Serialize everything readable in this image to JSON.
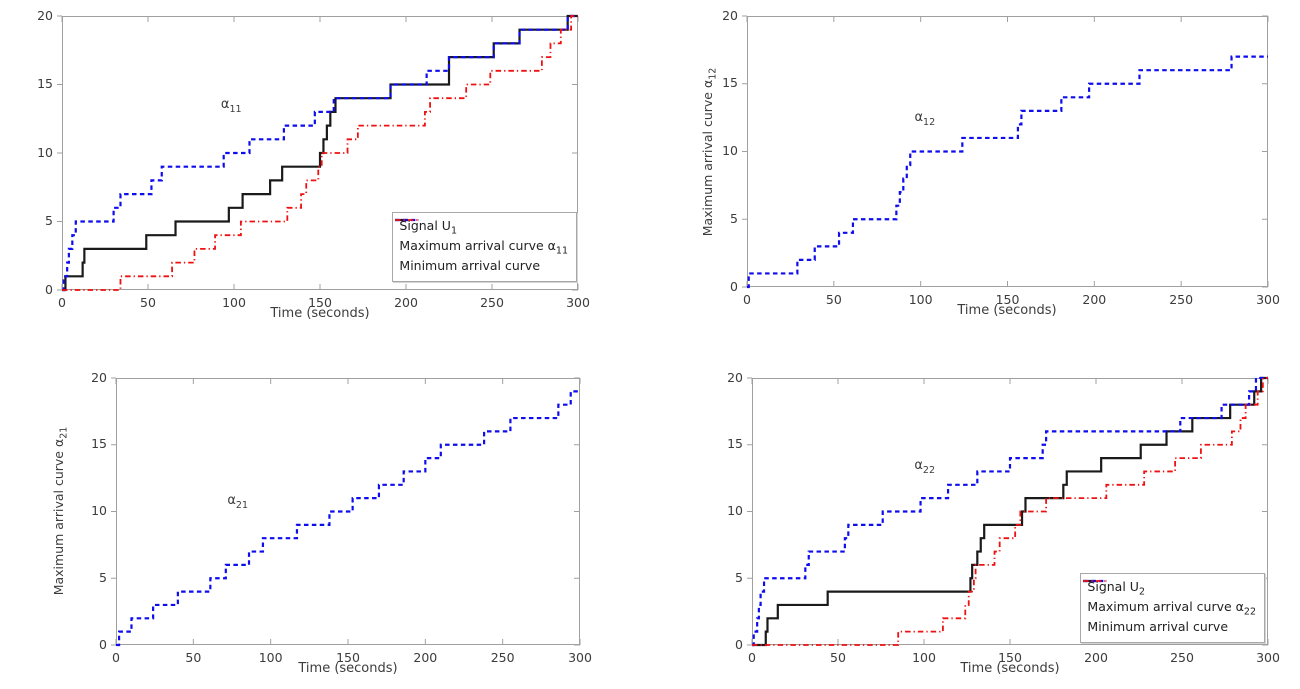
{
  "figure": {
    "background": "#ffffff"
  },
  "colors": {
    "signal": "#1a1a1a",
    "max_curve": "#0d0dee",
    "min_curve": "#ee1111",
    "axis": "#a0a0a0",
    "text": "#3c3c3c"
  },
  "chart_data": [
    {
      "id": "signal-u1-plot",
      "type": "line",
      "step": true,
      "xlabel": "Time (seconds)",
      "ylabel": {
        "text": "",
        "sub": ""
      },
      "xlim": [
        0,
        300
      ],
      "ylim": [
        0,
        20
      ],
      "xticks": [
        0,
        50,
        100,
        150,
        200,
        250,
        300
      ],
      "yticks": [
        0,
        5,
        10,
        15,
        20
      ],
      "grid": false,
      "annotation": {
        "text": "α",
        "sub": "11",
        "x": 96,
        "y": 13.4
      },
      "legend": {
        "position": "lower-right",
        "entries": [
          {
            "text": "Signal U",
            "sub": "1",
            "series": 0
          },
          {
            "text": "Maximum arrival curve α",
            "sub": "11",
            "series": 1
          },
          {
            "text": "Minimum arrival curve",
            "sub": "",
            "series": 2
          }
        ]
      },
      "series": [
        {
          "name": "Signal U1",
          "role": "signal",
          "color": "#1a1a1a",
          "style": "solid",
          "width": 2.2,
          "points": [
            [
              0,
              0
            ],
            [
              2,
              1
            ],
            [
              12,
              2
            ],
            [
              13,
              3
            ],
            [
              49,
              4
            ],
            [
              66,
              5
            ],
            [
              97,
              6
            ],
            [
              105,
              7
            ],
            [
              121,
              8
            ],
            [
              128,
              9
            ],
            [
              150,
              10
            ],
            [
              152,
              11
            ],
            [
              154,
              12
            ],
            [
              156,
              13
            ],
            [
              159,
              14
            ],
            [
              191,
              15
            ],
            [
              225,
              17
            ],
            [
              251,
              18
            ],
            [
              266,
              19
            ],
            [
              294,
              20
            ]
          ]
        },
        {
          "name": "Maximum arrival curve α11",
          "role": "max",
          "color": "#0d0dee",
          "style": "dashed",
          "width": 2.2,
          "points": [
            [
              0,
              0
            ],
            [
              1,
              1
            ],
            [
              3,
              2
            ],
            [
              4,
              3
            ],
            [
              6,
              4
            ],
            [
              8,
              5
            ],
            [
              30,
              6
            ],
            [
              34,
              7
            ],
            [
              52,
              8
            ],
            [
              58,
              9
            ],
            [
              94,
              10
            ],
            [
              109,
              11
            ],
            [
              129,
              12
            ],
            [
              147,
              13
            ],
            [
              158,
              14
            ],
            [
              191,
              15
            ],
            [
              212,
              16
            ],
            [
              225,
              17
            ],
            [
              251,
              18
            ],
            [
              266,
              19
            ],
            [
              294,
              20
            ]
          ]
        },
        {
          "name": "Minimum arrival curve",
          "role": "min",
          "color": "#ee1111",
          "style": "dashdot",
          "width": 1.8,
          "points": [
            [
              0,
              0
            ],
            [
              34,
              1
            ],
            [
              64,
              2
            ],
            [
              77,
              3
            ],
            [
              89,
              4
            ],
            [
              104,
              5
            ],
            [
              131,
              6
            ],
            [
              139,
              7
            ],
            [
              142,
              8
            ],
            [
              149,
              9
            ],
            [
              151,
              10
            ],
            [
              166,
              11
            ],
            [
              172,
              12
            ],
            [
              211,
              13
            ],
            [
              214,
              14
            ],
            [
              235,
              15
            ],
            [
              249,
              16
            ],
            [
              279,
              17
            ],
            [
              284,
              18
            ],
            [
              290,
              19
            ],
            [
              296,
              20
            ]
          ]
        }
      ]
    },
    {
      "id": "alpha12-plot",
      "type": "line",
      "step": true,
      "xlabel": "Time (seconds)",
      "ylabel": {
        "text": "Maximum arrival curve α",
        "sub": "12"
      },
      "xlim": [
        0,
        300
      ],
      "ylim": [
        0,
        20
      ],
      "xticks": [
        0,
        50,
        100,
        150,
        200,
        250,
        300
      ],
      "yticks": [
        0,
        5,
        10,
        15,
        20
      ],
      "grid": false,
      "annotation": {
        "text": "α",
        "sub": "12",
        "x": 100,
        "y": 12.4
      },
      "legend": null,
      "series": [
        {
          "name": "Maximum arrival curve α12",
          "role": "max",
          "color": "#0d0dee",
          "style": "dashed",
          "width": 2.2,
          "points": [
            [
              0,
              0
            ],
            [
              1,
              1
            ],
            [
              29,
              2
            ],
            [
              39,
              3
            ],
            [
              53,
              4
            ],
            [
              61,
              5
            ],
            [
              86,
              6
            ],
            [
              88,
              7
            ],
            [
              90,
              8
            ],
            [
              92,
              9
            ],
            [
              94,
              10
            ],
            [
              124,
              11
            ],
            [
              156,
              12
            ],
            [
              158,
              13
            ],
            [
              181,
              14
            ],
            [
              197,
              15
            ],
            [
              226,
              16
            ],
            [
              279,
              17
            ]
          ]
        }
      ]
    },
    {
      "id": "alpha21-plot",
      "type": "line",
      "step": true,
      "xlabel": "Time (seconds)",
      "ylabel": {
        "text": "Maximum arrival curve α",
        "sub": "21"
      },
      "xlim": [
        0,
        300
      ],
      "ylim": [
        0,
        20
      ],
      "xticks": [
        0,
        50,
        100,
        150,
        200,
        250,
        300
      ],
      "yticks": [
        0,
        5,
        10,
        15,
        20
      ],
      "grid": false,
      "annotation": {
        "text": "α",
        "sub": "21",
        "x": 76,
        "y": 10.7
      },
      "legend": null,
      "series": [
        {
          "name": "Maximum arrival curve α21",
          "role": "max",
          "color": "#0d0dee",
          "style": "dashed",
          "width": 2.2,
          "points": [
            [
              0,
              0
            ],
            [
              2,
              1
            ],
            [
              10,
              2
            ],
            [
              24,
              3
            ],
            [
              40,
              4
            ],
            [
              61,
              5
            ],
            [
              71,
              6
            ],
            [
              86,
              7
            ],
            [
              95,
              8
            ],
            [
              117,
              9
            ],
            [
              138,
              10
            ],
            [
              153,
              11
            ],
            [
              170,
              12
            ],
            [
              186,
              13
            ],
            [
              200,
              14
            ],
            [
              210,
              15
            ],
            [
              238,
              16
            ],
            [
              255,
              17
            ],
            [
              286,
              18
            ],
            [
              294,
              19
            ]
          ]
        }
      ]
    },
    {
      "id": "signal-u2-plot",
      "type": "line",
      "step": true,
      "xlabel": "Time (seconds)",
      "ylabel": {
        "text": "",
        "sub": ""
      },
      "xlim": [
        0,
        300
      ],
      "ylim": [
        0,
        20
      ],
      "xticks": [
        0,
        50,
        100,
        150,
        200,
        250,
        300
      ],
      "yticks": [
        0,
        5,
        10,
        15,
        20
      ],
      "grid": false,
      "annotation": {
        "text": "α",
        "sub": "22",
        "x": 98,
        "y": 13.3
      },
      "legend": {
        "position": "lower-right",
        "entries": [
          {
            "text": "Signal U",
            "sub": "2",
            "series": 0
          },
          {
            "text": "Maximum arrival curve α",
            "sub": "22",
            "series": 1
          },
          {
            "text": "Minimum arrival curve",
            "sub": "",
            "series": 2
          }
        ]
      },
      "series": [
        {
          "name": "Signal U2",
          "role": "signal",
          "color": "#1a1a1a",
          "style": "solid",
          "width": 2.2,
          "points": [
            [
              0,
              0
            ],
            [
              8,
              1
            ],
            [
              9,
              2
            ],
            [
              15,
              3
            ],
            [
              44,
              4
            ],
            [
              127,
              5
            ],
            [
              128,
              6
            ],
            [
              131,
              7
            ],
            [
              133,
              8
            ],
            [
              135,
              9
            ],
            [
              157,
              10
            ],
            [
              159,
              11
            ],
            [
              181,
              12
            ],
            [
              183,
              13
            ],
            [
              203,
              14
            ],
            [
              226,
              15
            ],
            [
              241,
              16
            ],
            [
              256,
              17
            ],
            [
              278,
              18
            ],
            [
              292,
              19
            ],
            [
              296,
              20
            ]
          ]
        },
        {
          "name": "Maximum arrival curve α22",
          "role": "max",
          "color": "#0d0dee",
          "style": "dashed",
          "width": 2.2,
          "points": [
            [
              0,
              0
            ],
            [
              1,
              1
            ],
            [
              3,
              2
            ],
            [
              4,
              3
            ],
            [
              5,
              4
            ],
            [
              7,
              5
            ],
            [
              31,
              6
            ],
            [
              33,
              7
            ],
            [
              54,
              8
            ],
            [
              56,
              9
            ],
            [
              76,
              10
            ],
            [
              98,
              11
            ],
            [
              114,
              12
            ],
            [
              131,
              13
            ],
            [
              150,
              14
            ],
            [
              169,
              15
            ],
            [
              171,
              16
            ],
            [
              249,
              17
            ],
            [
              273,
              18
            ],
            [
              289,
              19
            ],
            [
              293,
              20
            ]
          ]
        },
        {
          "name": "Minimum arrival curve",
          "role": "min",
          "color": "#ee1111",
          "style": "dashdot",
          "width": 1.8,
          "points": [
            [
              0,
              0
            ],
            [
              85,
              1
            ],
            [
              111,
              2
            ],
            [
              124,
              3
            ],
            [
              126,
              4
            ],
            [
              129,
              5
            ],
            [
              130,
              6
            ],
            [
              141,
              7
            ],
            [
              144,
              8
            ],
            [
              153,
              9
            ],
            [
              156,
              10
            ],
            [
              171,
              11
            ],
            [
              206,
              12
            ],
            [
              228,
              13
            ],
            [
              246,
              14
            ],
            [
              261,
              15
            ],
            [
              279,
              16
            ],
            [
              284,
              17
            ],
            [
              287,
              18
            ],
            [
              294,
              19
            ],
            [
              297,
              20
            ]
          ]
        }
      ]
    }
  ]
}
